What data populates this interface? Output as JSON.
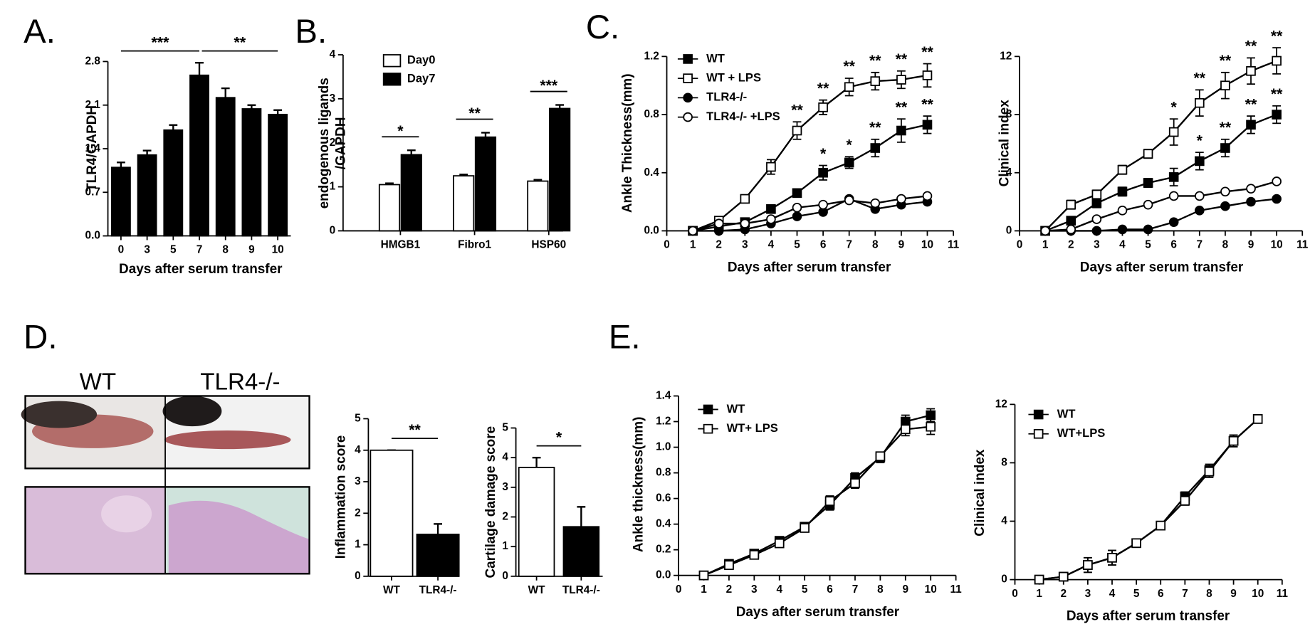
{
  "panel_labels": [
    "A.",
    "B.",
    "C.",
    "D.",
    "E."
  ],
  "photo_labels": [
    "WT",
    "TLR4-/-"
  ],
  "chart_data": [
    {
      "type": "bar",
      "xlabel": "Days after serum transfer",
      "ylabel": "TLR4/GAPDH",
      "categories": [
        "0",
        "3",
        "5",
        "7",
        "8",
        "9",
        "10"
      ],
      "series": [
        {
          "color": "#000000",
          "values": [
            1.1,
            1.3,
            1.7,
            2.58,
            2.22,
            2.04,
            1.95
          ],
          "errors": [
            0.08,
            0.07,
            0.08,
            0.2,
            0.15,
            0.06,
            0.07
          ]
        }
      ],
      "ylim": [
        0,
        2.8
      ],
      "yticks": [
        {
          "value": 0,
          "label": "0.0"
        },
        0.7,
        1.4,
        2.1,
        2.8
      ],
      "brackets": [
        {
          "text": "***",
          "span": [
            "0",
            "7"
          ]
        },
        {
          "text": "**",
          "span": [
            "7",
            "10"
          ]
        }
      ]
    },
    {
      "type": "bar",
      "ylabel": [
        "endogenous ligands",
        "/GAPDH"
      ],
      "categories": [
        "HMGB1",
        "Fibro1",
        "HSP60"
      ],
      "series": [
        {
          "name": "Day0",
          "color": "#ffffff",
          "values": [
            1.05,
            1.25,
            1.13
          ],
          "errors": [
            0.03,
            0.03,
            0.03
          ]
        },
        {
          "name": "Day7",
          "color": "#000000",
          "values": [
            1.73,
            2.13,
            2.78
          ],
          "errors": [
            0.1,
            0.1,
            0.08
          ]
        }
      ],
      "significance": [
        "*",
        "**",
        "***"
      ],
      "ylim": [
        0,
        4
      ],
      "yticks": [
        0,
        1,
        2,
        3,
        4
      ],
      "legend": "upper left"
    },
    {
      "type": "line",
      "xlabel": "Days after serum transfer",
      "ylabel": "Ankle Thickness(mm)",
      "x": [
        1,
        2,
        3,
        4,
        5,
        6,
        7,
        8,
        9,
        10
      ],
      "xlim": [
        0,
        11
      ],
      "xticks": [
        0,
        1,
        2,
        3,
        4,
        5,
        6,
        7,
        8,
        9,
        10,
        11
      ],
      "ylim": [
        0,
        1.2
      ],
      "yticks": [
        {
          "value": 0,
          "label": "0.0"
        },
        0.4,
        0.8,
        1.2
      ],
      "legend": "upper left",
      "series": [
        {
          "name": "WT",
          "color": "#000000",
          "marker": "square",
          "values": [
            0,
            0.03,
            0.06,
            0.15,
            0.26,
            0.4,
            0.47,
            0.57,
            0.69,
            0.73
          ],
          "errors": [
            0,
            0.01,
            0.02,
            0.02,
            0.02,
            0.05,
            0.04,
            0.06,
            0.08,
            0.06
          ],
          "significance": [
            null,
            null,
            null,
            null,
            null,
            "*",
            "*",
            "**",
            "**",
            "**"
          ]
        },
        {
          "name": "WT + LPS",
          "color": "#000000",
          "marker": "square-open",
          "values": [
            0,
            0.07,
            0.22,
            0.44,
            0.69,
            0.85,
            0.99,
            1.03,
            1.04,
            1.07
          ],
          "errors": [
            0,
            0.01,
            0.02,
            0.05,
            0.06,
            0.05,
            0.06,
            0.06,
            0.06,
            0.08
          ],
          "significance": [
            null,
            null,
            null,
            null,
            "**",
            "**",
            "**",
            "**",
            "**",
            "**"
          ]
        },
        {
          "name": "TLR4-/-",
          "color": "#000000",
          "marker": "circle",
          "values": [
            0,
            0,
            0.01,
            0.05,
            0.1,
            0.13,
            0.22,
            0.15,
            0.18,
            0.2
          ]
        },
        {
          "name": "TLR4-/- +LPS",
          "color": "#000000",
          "marker": "circle-open",
          "values": [
            0,
            0.05,
            0.05,
            0.08,
            0.16,
            0.18,
            0.21,
            0.19,
            0.22,
            0.24
          ]
        }
      ]
    },
    {
      "type": "line",
      "xlabel": "Days after serum transfer",
      "ylabel": "Clinical index",
      "x": [
        1,
        2,
        3,
        4,
        5,
        6,
        7,
        8,
        9,
        10
      ],
      "xlim": [
        0,
        11
      ],
      "xticks": [
        0,
        1,
        2,
        3,
        4,
        5,
        6,
        7,
        8,
        9,
        10,
        11
      ],
      "ylim": [
        0,
        12
      ],
      "yticks": [
        0,
        4,
        8,
        12
      ],
      "series": [
        {
          "name": "WT",
          "color": "#000000",
          "marker": "square",
          "values": [
            0,
            0.7,
            1.9,
            2.7,
            3.3,
            3.7,
            4.8,
            5.7,
            7.3,
            8.0
          ],
          "errors": [
            0,
            0.2,
            0.3,
            0.3,
            0.3,
            0.6,
            0.6,
            0.6,
            0.6,
            0.6
          ],
          "significance": [
            null,
            null,
            null,
            null,
            null,
            null,
            "*",
            "**",
            "**",
            "**"
          ]
        },
        {
          "name": "WT + LPS",
          "color": "#000000",
          "marker": "square-open",
          "values": [
            0,
            1.8,
            2.5,
            4.2,
            5.3,
            6.8,
            8.8,
            10,
            11,
            11.7
          ],
          "errors": [
            0,
            0.3,
            0.3,
            0.3,
            0.3,
            0.9,
            0.9,
            0.9,
            0.9,
            0.9
          ],
          "significance": [
            null,
            null,
            null,
            null,
            null,
            "*",
            "**",
            "**",
            "**",
            "**"
          ]
        },
        {
          "name": "TLR4-/-",
          "color": "#000000",
          "marker": "circle",
          "values": [
            0,
            0,
            0,
            0.1,
            0.1,
            0.6,
            1.4,
            1.7,
            2,
            2.2
          ]
        },
        {
          "name": "TLR4-/- +LPS",
          "color": "#000000",
          "marker": "circle-open",
          "values": [
            0,
            0.1,
            0.8,
            1.4,
            1.8,
            2.4,
            2.4,
            2.7,
            2.9,
            3.4
          ]
        }
      ]
    },
    {
      "type": "bar",
      "ylabel": "Inflammation score",
      "categories": [
        "WT",
        "TLR4-/-"
      ],
      "series": [
        {
          "colors": [
            "#ffffff",
            "#000000"
          ],
          "values": [
            4.0,
            1.33
          ],
          "errors": [
            0,
            0.33
          ]
        }
      ],
      "ylim": [
        0,
        5
      ],
      "yticks": [
        0,
        1,
        2,
        3,
        4,
        5
      ],
      "brackets": [
        {
          "text": "**",
          "span": [
            "WT",
            "TLR4-/-"
          ]
        }
      ]
    },
    {
      "type": "bar",
      "ylabel": "Cartilage damage score",
      "categories": [
        "WT",
        "TLR4-/-"
      ],
      "series": [
        {
          "colors": [
            "#ffffff",
            "#000000"
          ],
          "values": [
            3.67,
            1.67
          ],
          "errors": [
            0.33,
            0.67
          ]
        }
      ],
      "ylim": [
        0,
        5
      ],
      "yticks": [
        0,
        1,
        2,
        3,
        4,
        5
      ],
      "brackets": [
        {
          "text": "*",
          "span": [
            "WT",
            "TLR4-/-"
          ]
        }
      ]
    },
    {
      "type": "line",
      "xlabel": "Days after serum transfer",
      "ylabel": "Ankle thickness(mm)",
      "x": [
        1,
        2,
        3,
        4,
        5,
        6,
        7,
        8,
        9,
        10
      ],
      "xlim": [
        0,
        11
      ],
      "xticks": [
        0,
        1,
        2,
        3,
        4,
        5,
        6,
        7,
        8,
        9,
        10,
        11
      ],
      "ylim": [
        0,
        1.4
      ],
      "yticks": [
        {
          "value": 0,
          "label": "0.0"
        },
        0.2,
        0.4,
        0.6,
        0.8,
        {
          "value": 1,
          "label": "1.0"
        },
        1.2,
        1.4
      ],
      "legend": "upper left",
      "series": [
        {
          "name": "WT",
          "color": "#000000",
          "marker": "square",
          "values": [
            0,
            0.09,
            0.17,
            0.27,
            0.38,
            0.55,
            0.76,
            0.92,
            1.2,
            1.25
          ],
          "errors": [
            0,
            0.01,
            0.01,
            0.02,
            0.02,
            0.04,
            0.04,
            0.04,
            0.05,
            0.05
          ]
        },
        {
          "name": "WT+ LPS",
          "color": "#000000",
          "marker": "square-open",
          "values": [
            0,
            0.08,
            0.16,
            0.25,
            0.37,
            0.58,
            0.72,
            0.93,
            1.14,
            1.16
          ],
          "errors": [
            0,
            0.01,
            0.01,
            0.02,
            0.02,
            0.04,
            0.04,
            0.03,
            0.05,
            0.06
          ]
        }
      ]
    },
    {
      "type": "line",
      "xlabel": "Days after serum transfer",
      "ylabel": "Clinical index",
      "x": [
        1,
        2,
        3,
        4,
        5,
        6,
        7,
        8,
        9,
        10
      ],
      "xlim": [
        0,
        11
      ],
      "xticks": [
        0,
        1,
        2,
        3,
        4,
        5,
        6,
        7,
        8,
        9,
        10,
        11
      ],
      "ylim": [
        0,
        12
      ],
      "yticks": [
        0,
        4,
        8,
        12
      ],
      "legend": "upper left",
      "series": [
        {
          "name": "WT",
          "color": "#000000",
          "marker": "square",
          "values": [
            0,
            0.2,
            1,
            1.5,
            2.5,
            3.7,
            5.7,
            7.5,
            9.5,
            11
          ],
          "errors": [
            0,
            0.1,
            0.5,
            0.5,
            0.1,
            0.1,
            0.3,
            0.4,
            0.4,
            0.1
          ]
        },
        {
          "name": "WT+LPS",
          "color": "#000000",
          "marker": "square-open",
          "values": [
            0,
            0.2,
            1,
            1.5,
            2.5,
            3.7,
            5.4,
            7.4,
            9.5,
            11
          ],
          "errors": [
            0,
            0.1,
            0.5,
            0.5,
            0.1,
            0.1,
            0.3,
            0.4,
            0.4,
            0.1
          ]
        }
      ]
    }
  ]
}
